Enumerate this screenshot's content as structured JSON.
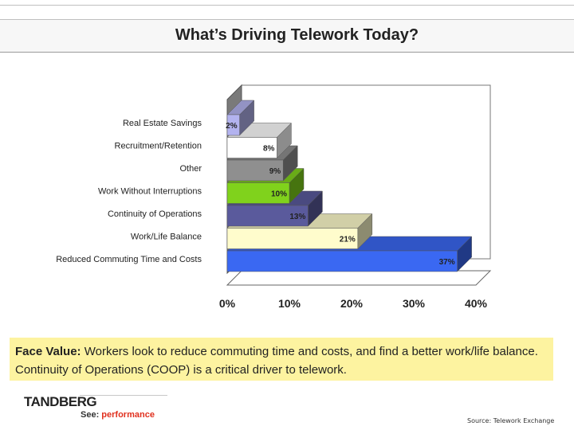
{
  "title": "What’s Driving Telework Today?",
  "chart_data": {
    "type": "bar",
    "orientation": "horizontal",
    "style": "3d",
    "categories": [
      "Real Estate Savings",
      "Recruitment/Retention",
      "Other",
      "Work Without Interruptions",
      "Continuity of Operations",
      "Work/Life Balance",
      "Reduced Commuting Time and Costs"
    ],
    "values": [
      2,
      8,
      9,
      10,
      13,
      21,
      37
    ],
    "data_labels": [
      "2%",
      "8%",
      "9%",
      "10%",
      "13%",
      "21%",
      "37%"
    ],
    "colors": [
      "#b3b3ef",
      "#ffffff",
      "#8f8f8f",
      "#80d21c",
      "#5a5a9c",
      "#fffccc",
      "#3a68f2"
    ],
    "xticks": [
      "0%",
      "10%",
      "20%",
      "30%",
      "40%"
    ],
    "xlim": [
      0,
      40
    ],
    "grid": false
  },
  "face_value": {
    "label": "Face Value:",
    "text": " Workers look to reduce commuting time and costs, and find a better work/life balance.  Continuity of Operations (COOP) is a critical driver to telework."
  },
  "logo": {
    "name": "TANDBERG",
    "tag_see": "See:",
    "tag_perf": " performance"
  },
  "source": "Source: Telework Exchange"
}
